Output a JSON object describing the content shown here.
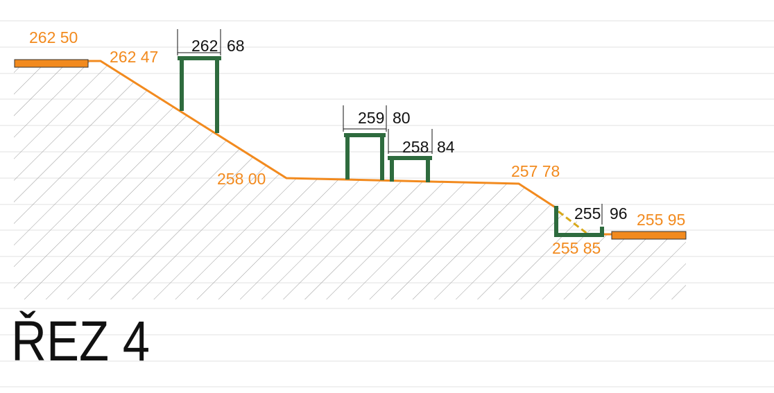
{
  "title": "ŘEZ 4",
  "terrain_labels": [
    "262 50",
    "262 47",
    "258 00",
    "257 78",
    "255 95",
    "255 85"
  ],
  "structure_labels": [
    {
      "main": "262",
      "sub": "68"
    },
    {
      "main": "259",
      "sub": "80"
    },
    {
      "main": "258",
      "sub": "84"
    },
    {
      "main": "255",
      "sub": "96"
    }
  ]
}
